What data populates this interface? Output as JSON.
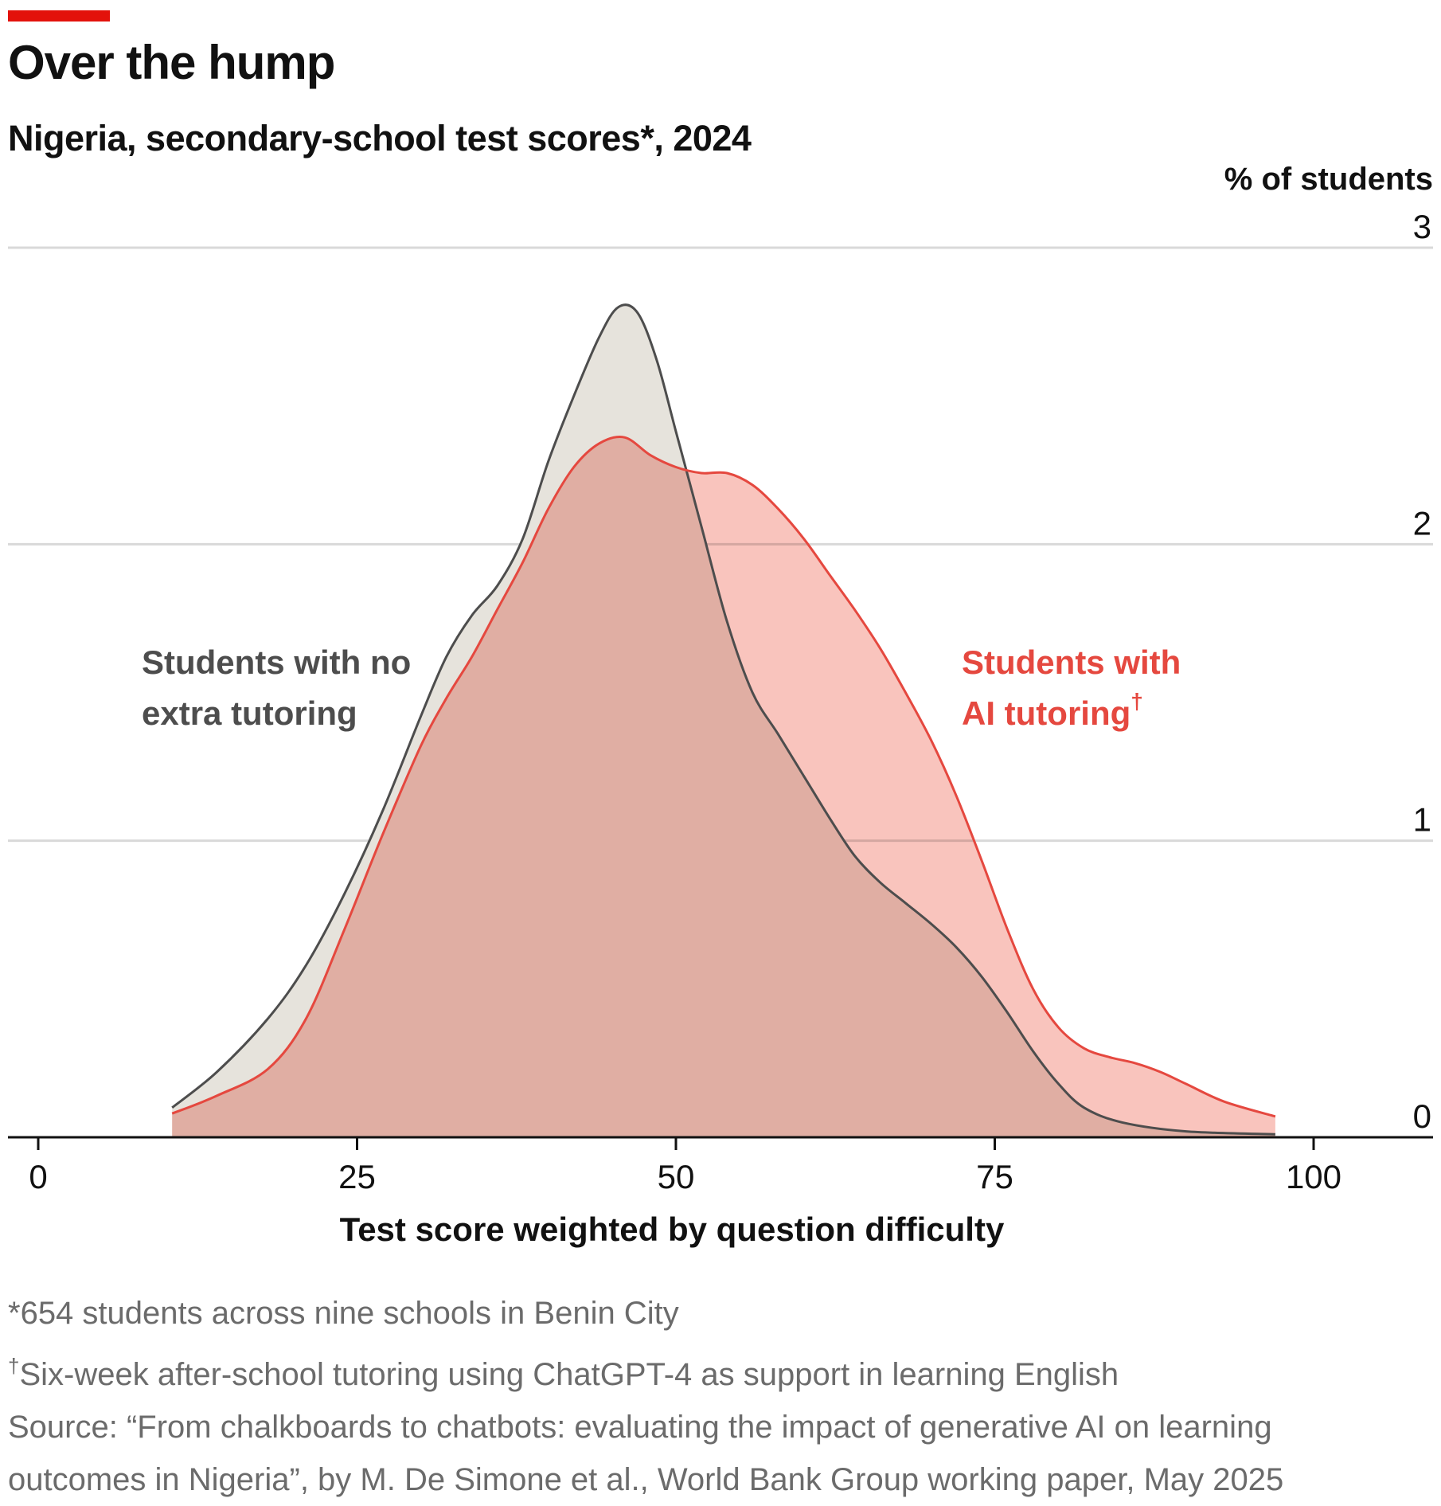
{
  "header": {
    "title": "Over the hump",
    "subtitle": "Nigeria, secondary-school test scores*, 2024"
  },
  "chart_data": {
    "type": "area",
    "title": "Over the hump",
    "subtitle": "Nigeria, secondary-school test scores*, 2024",
    "xlabel": "Test score weighted by question difficulty",
    "ylabel": "% of students",
    "xlim": [
      0,
      100
    ],
    "ylim": [
      0,
      3
    ],
    "x_ticks": [
      0,
      25,
      50,
      75,
      100
    ],
    "y_ticks": [
      0,
      1,
      2,
      3
    ],
    "grid": "horizontal",
    "series": [
      {
        "name": "Students with no extra tutoring",
        "color": "#4d4d4d",
        "fill": "#e6e3dc",
        "points": [
          [
            10.5,
            0.1
          ],
          [
            14,
            0.22
          ],
          [
            18,
            0.4
          ],
          [
            21,
            0.58
          ],
          [
            24,
            0.82
          ],
          [
            27,
            1.1
          ],
          [
            30,
            1.42
          ],
          [
            32,
            1.62
          ],
          [
            34,
            1.76
          ],
          [
            36,
            1.86
          ],
          [
            38,
            2.02
          ],
          [
            40,
            2.28
          ],
          [
            42,
            2.5
          ],
          [
            44,
            2.7
          ],
          [
            45.5,
            2.8
          ],
          [
            47,
            2.78
          ],
          [
            48.5,
            2.62
          ],
          [
            50,
            2.38
          ],
          [
            52,
            2.06
          ],
          [
            54,
            1.74
          ],
          [
            56,
            1.5
          ],
          [
            58,
            1.36
          ],
          [
            60,
            1.22
          ],
          [
            62,
            1.08
          ],
          [
            64,
            0.95
          ],
          [
            66,
            0.86
          ],
          [
            68,
            0.79
          ],
          [
            70,
            0.72
          ],
          [
            72,
            0.64
          ],
          [
            74,
            0.54
          ],
          [
            76,
            0.42
          ],
          [
            78,
            0.29
          ],
          [
            80,
            0.18
          ],
          [
            82,
            0.1
          ],
          [
            85,
            0.05
          ],
          [
            90,
            0.02
          ],
          [
            97,
            0.01
          ]
        ]
      },
      {
        "name": "Students with AI tutoring",
        "color": "#e5483f",
        "fill": "#f59f95",
        "points": [
          [
            10.5,
            0.08
          ],
          [
            14,
            0.14
          ],
          [
            18,
            0.23
          ],
          [
            21,
            0.4
          ],
          [
            24,
            0.7
          ],
          [
            27,
            1.02
          ],
          [
            30,
            1.32
          ],
          [
            32,
            1.48
          ],
          [
            34,
            1.62
          ],
          [
            36,
            1.78
          ],
          [
            38,
            1.94
          ],
          [
            40,
            2.12
          ],
          [
            42,
            2.26
          ],
          [
            44,
            2.34
          ],
          [
            46,
            2.36
          ],
          [
            48,
            2.3
          ],
          [
            50,
            2.26
          ],
          [
            52,
            2.24
          ],
          [
            54,
            2.24
          ],
          [
            56,
            2.2
          ],
          [
            58,
            2.12
          ],
          [
            60,
            2.02
          ],
          [
            62,
            1.9
          ],
          [
            64,
            1.78
          ],
          [
            66,
            1.65
          ],
          [
            68,
            1.5
          ],
          [
            70,
            1.34
          ],
          [
            72,
            1.15
          ],
          [
            74,
            0.93
          ],
          [
            76,
            0.7
          ],
          [
            78,
            0.5
          ],
          [
            80,
            0.37
          ],
          [
            82,
            0.3
          ],
          [
            84,
            0.27
          ],
          [
            86,
            0.25
          ],
          [
            88,
            0.22
          ],
          [
            90,
            0.18
          ],
          [
            93,
            0.12
          ],
          [
            97,
            0.07
          ]
        ]
      }
    ],
    "annotations": [
      {
        "text_lines": [
          "Students with no",
          "extra tutoring"
        ],
        "series": "Students with no extra tutoring",
        "color": "#4d4d4d"
      },
      {
        "text_lines": [
          "Students with",
          "AI tutoring"
        ],
        "sup": "†",
        "series": "Students with AI tutoring",
        "color": "#e5483f"
      }
    ]
  },
  "footnotes": {
    "note1": "*654 students across nine schools in Benin City",
    "note2_mark": "†",
    "note2": "Six-week after-school tutoring using ChatGPT-4 as support in learning English",
    "source_line1": "Source: “From chalkboards to chatbots: evaluating the impact of generative AI on learning",
    "source_line2": "outcomes in Nigeria”, by M. De Simone et al., World Bank Group working paper, May 2025"
  },
  "colors": {
    "accent_red": "#e3120b",
    "gridline": "#d9d9d9",
    "axis": "#111111",
    "note_text": "#6b6b6b"
  }
}
